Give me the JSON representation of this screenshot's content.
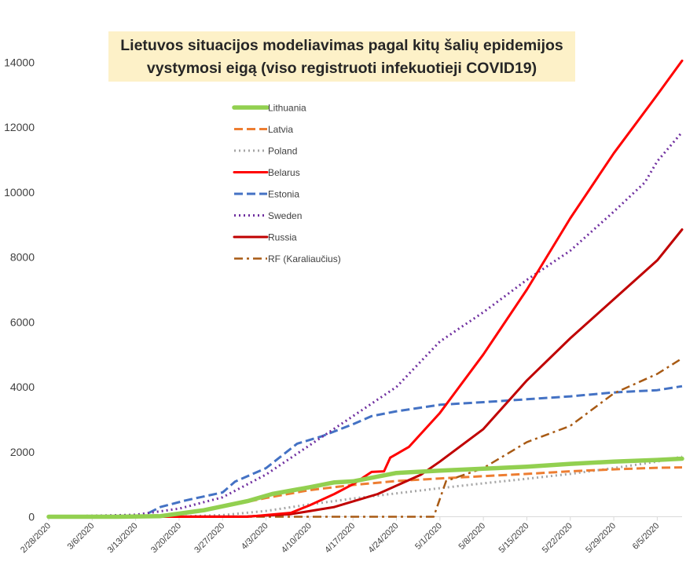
{
  "chart_data": {
    "type": "line",
    "title_lines": [
      "Lietuvos situacijos modeliavimas pagal kitų šalių epidemijos",
      "vystymosi eigą (viso registruoti infekuotieji COVID19)"
    ],
    "xlabel": "",
    "ylabel": "",
    "x_start": "2/28/2020",
    "x_end": "6/9/2020",
    "x_ticks": [
      "2/28/2020",
      "3/6/2020",
      "3/13/2020",
      "3/20/2020",
      "3/27/2020",
      "4/3/2020",
      "4/10/2020",
      "4/17/2020",
      "4/24/2020",
      "5/1/2020",
      "5/8/2020",
      "5/15/2020",
      "5/22/2020",
      "5/29/2020",
      "6/5/2020"
    ],
    "y_ticks": [
      0,
      2000,
      4000,
      6000,
      8000,
      10000,
      12000,
      14000
    ],
    "ylim": [
      0,
      14000
    ],
    "grid": false,
    "legend_position": "upper-left",
    "series": [
      {
        "name": "Lithuania",
        "color": "#92d050",
        "style": "solid-thick",
        "points": [
          [
            "2/28/2020",
            0
          ],
          [
            "3/10/2020",
            1
          ],
          [
            "3/17/2020",
            20
          ],
          [
            "3/24/2020",
            200
          ],
          [
            "3/31/2020",
            480
          ],
          [
            "4/4/2020",
            700
          ],
          [
            "4/10/2020",
            910
          ],
          [
            "4/14/2020",
            1060
          ],
          [
            "4/17/2020",
            1090
          ],
          [
            "4/24/2020",
            1350
          ],
          [
            "5/1/2020",
            1420
          ],
          [
            "5/8/2020",
            1480
          ],
          [
            "5/15/2020",
            1540
          ],
          [
            "5/22/2020",
            1630
          ],
          [
            "5/29/2020",
            1700
          ],
          [
            "6/5/2020",
            1750
          ],
          [
            "6/9/2020",
            1790
          ]
        ]
      },
      {
        "name": "Latvia",
        "color": "#ed7d31",
        "style": "dashed",
        "points": [
          [
            "2/28/2020",
            0
          ],
          [
            "3/12/2020",
            2
          ],
          [
            "3/20/2020",
            80
          ],
          [
            "3/27/2020",
            300
          ],
          [
            "4/3/2020",
            580
          ],
          [
            "4/10/2020",
            820
          ],
          [
            "4/17/2020",
            980
          ],
          [
            "4/24/2020",
            1100
          ],
          [
            "5/1/2020",
            1180
          ],
          [
            "5/8/2020",
            1250
          ],
          [
            "5/15/2020",
            1320
          ],
          [
            "5/22/2020",
            1400
          ],
          [
            "5/29/2020",
            1460
          ],
          [
            "6/5/2020",
            1510
          ],
          [
            "6/9/2020",
            1520
          ]
        ]
      },
      {
        "name": "Poland",
        "color": "#a5a5a5",
        "style": "dotted",
        "points": [
          [
            "2/28/2020",
            0
          ],
          [
            "3/20/2020",
            5
          ],
          [
            "3/27/2020",
            50
          ],
          [
            "4/3/2020",
            180
          ],
          [
            "4/10/2020",
            380
          ],
          [
            "4/17/2020",
            560
          ],
          [
            "4/24/2020",
            720
          ],
          [
            "5/1/2020",
            880
          ],
          [
            "5/8/2020",
            1030
          ],
          [
            "5/15/2020",
            1170
          ],
          [
            "5/22/2020",
            1320
          ],
          [
            "5/29/2020",
            1500
          ],
          [
            "6/5/2020",
            1700
          ],
          [
            "6/9/2020",
            1850
          ]
        ]
      },
      {
        "name": "Belarus",
        "color": "#ff0000",
        "style": "solid",
        "points": [
          [
            "2/28/2020",
            0
          ],
          [
            "3/31/2020",
            0
          ],
          [
            "4/7/2020",
            120
          ],
          [
            "4/10/2020",
            350
          ],
          [
            "4/14/2020",
            700
          ],
          [
            "4/17/2020",
            1000
          ],
          [
            "4/20/2020",
            1380
          ],
          [
            "4/22/2020",
            1400
          ],
          [
            "4/23/2020",
            1820
          ],
          [
            "4/26/2020",
            2150
          ],
          [
            "5/1/2020",
            3200
          ],
          [
            "5/8/2020",
            5000
          ],
          [
            "5/15/2020",
            7000
          ],
          [
            "5/22/2020",
            9200
          ],
          [
            "5/29/2020",
            11200
          ],
          [
            "6/5/2020",
            13000
          ],
          [
            "6/9/2020",
            14050
          ]
        ]
      },
      {
        "name": "Estonia",
        "color": "#4472c4",
        "style": "dashed",
        "points": [
          [
            "2/28/2020",
            0
          ],
          [
            "3/14/2020",
            10
          ],
          [
            "3/17/2020",
            300
          ],
          [
            "3/21/2020",
            500
          ],
          [
            "3/27/2020",
            750
          ],
          [
            "3/29/2020",
            1080
          ],
          [
            "4/3/2020",
            1500
          ],
          [
            "4/5/2020",
            1800
          ],
          [
            "4/8/2020",
            2250
          ],
          [
            "4/12/2020",
            2480
          ],
          [
            "4/17/2020",
            2850
          ],
          [
            "4/20/2020",
            3100
          ],
          [
            "4/24/2020",
            3250
          ],
          [
            "5/1/2020",
            3450
          ],
          [
            "5/8/2020",
            3530
          ],
          [
            "5/15/2020",
            3620
          ],
          [
            "5/22/2020",
            3710
          ],
          [
            "5/29/2020",
            3830
          ],
          [
            "6/5/2020",
            3900
          ],
          [
            "6/9/2020",
            4020
          ]
        ]
      },
      {
        "name": "Sweden",
        "color": "#7030a0",
        "style": "dotted",
        "points": [
          [
            "2/28/2020",
            0
          ],
          [
            "3/13/2020",
            60
          ],
          [
            "3/20/2020",
            250
          ],
          [
            "3/27/2020",
            600
          ],
          [
            "4/3/2020",
            1300
          ],
          [
            "4/10/2020",
            2200
          ],
          [
            "4/17/2020",
            3100
          ],
          [
            "4/24/2020",
            4000
          ],
          [
            "5/1/2020",
            5400
          ],
          [
            "5/8/2020",
            6300
          ],
          [
            "5/15/2020",
            7300
          ],
          [
            "5/22/2020",
            8200
          ],
          [
            "5/29/2020",
            9400
          ],
          [
            "6/3/2020",
            10300
          ],
          [
            "6/5/2020",
            10950
          ],
          [
            "6/9/2020",
            11850
          ]
        ]
      },
      {
        "name": "Russia",
        "color": "#c00000",
        "style": "solid",
        "points": [
          [
            "2/28/2020",
            0
          ],
          [
            "3/31/2020",
            10
          ],
          [
            "4/7/2020",
            80
          ],
          [
            "4/14/2020",
            300
          ],
          [
            "4/21/2020",
            700
          ],
          [
            "4/28/2020",
            1300
          ],
          [
            "5/1/2020",
            1700
          ],
          [
            "5/8/2020",
            2700
          ],
          [
            "5/15/2020",
            4200
          ],
          [
            "5/22/2020",
            5500
          ],
          [
            "5/29/2020",
            6700
          ],
          [
            "6/5/2020",
            7900
          ],
          [
            "6/9/2020",
            8850
          ]
        ]
      },
      {
        "name": "RF (Karaliaučius)",
        "color": "#a85a14",
        "style": "dash-dot",
        "points": [
          [
            "2/28/2020",
            0
          ],
          [
            "4/30/2020",
            0
          ],
          [
            "5/2/2020",
            1100
          ],
          [
            "5/8/2020",
            1500
          ],
          [
            "5/15/2020",
            2300
          ],
          [
            "5/22/2020",
            2800
          ],
          [
            "5/29/2020",
            3800
          ],
          [
            "6/5/2020",
            4400
          ],
          [
            "6/9/2020",
            4880
          ]
        ]
      }
    ]
  }
}
